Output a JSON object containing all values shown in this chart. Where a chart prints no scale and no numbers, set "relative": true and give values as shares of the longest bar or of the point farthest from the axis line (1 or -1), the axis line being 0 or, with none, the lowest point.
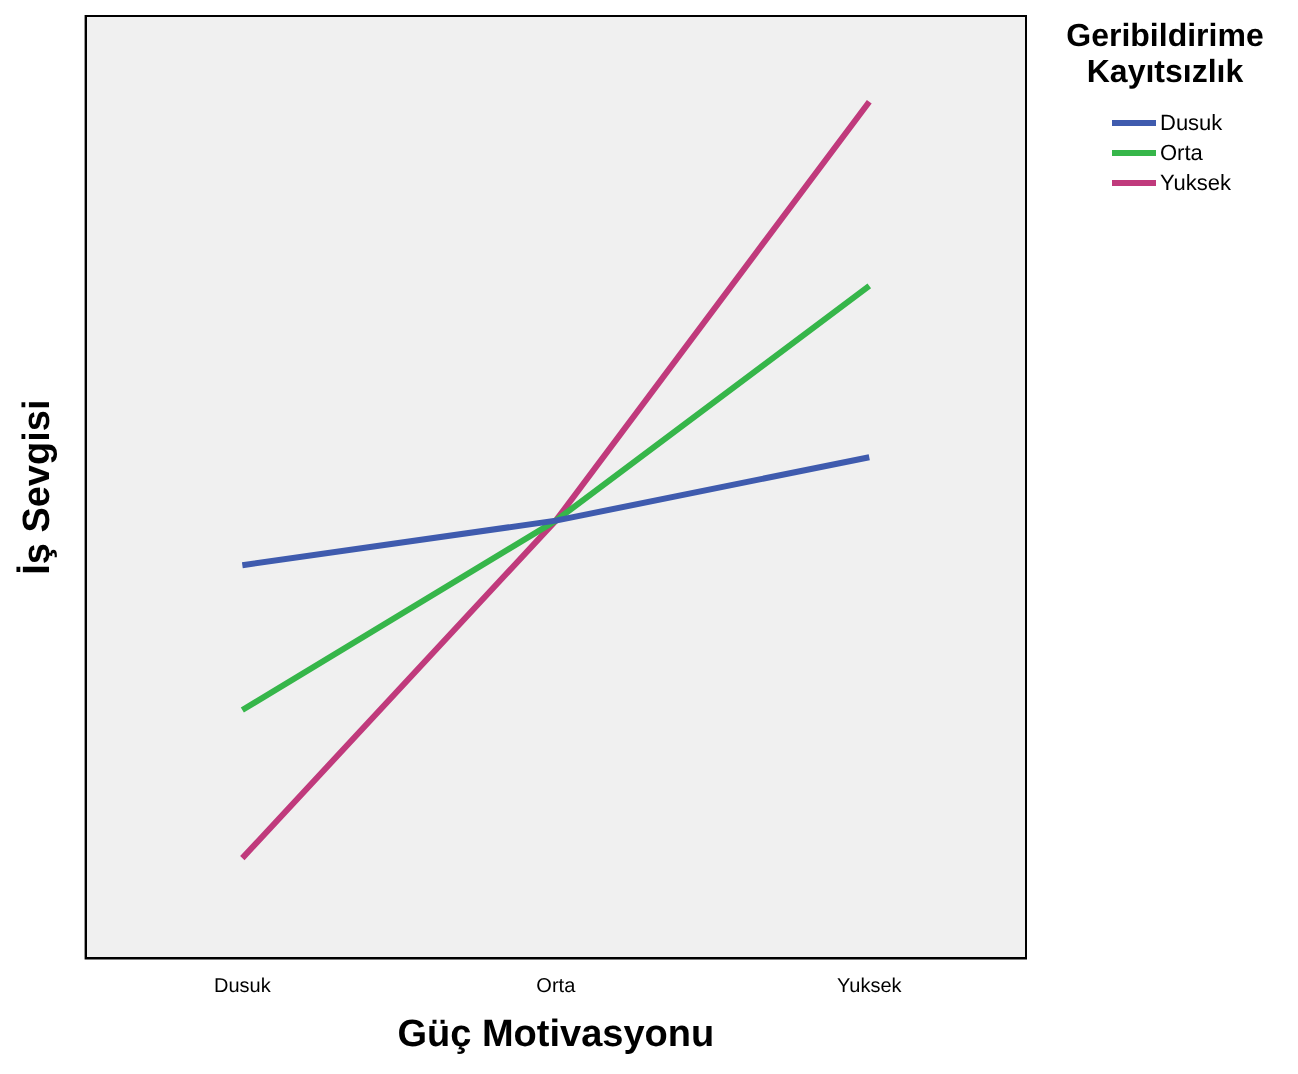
{
  "chart_data": {
    "type": "line",
    "xlabel": "Güç Motivasyonu",
    "ylabel": "İş Sevgisi",
    "legend_title": "Geribildirime Kayıtsızlık",
    "categories": [
      "Dusuk",
      "Orta",
      "Yuksek"
    ],
    "relative": true,
    "legend": "top right",
    "grid": false,
    "marker": "none",
    "series": [
      {
        "name": "Dusuk",
        "color": "#3f5bae",
        "values": [
          0.459,
          0.511,
          0.585
        ]
      },
      {
        "name": "Orta",
        "color": "#36b64a",
        "values": [
          0.29,
          0.511,
          0.785
        ]
      },
      {
        "name": "Yuksek",
        "color": "#c03a7c",
        "values": [
          0.117,
          0.511,
          1
        ]
      }
    ]
  }
}
